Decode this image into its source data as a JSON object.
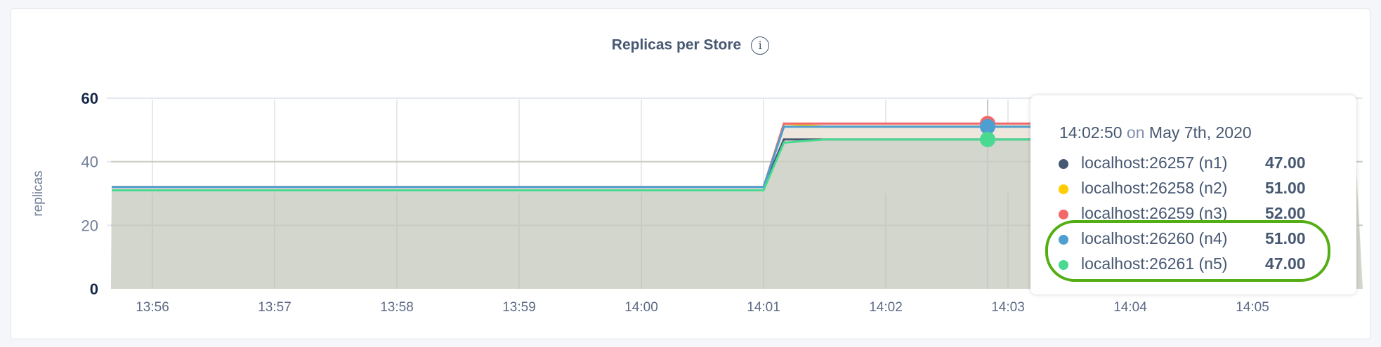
{
  "chart_data": {
    "type": "area",
    "title": "Replicas per Store",
    "ylabel": "replicas",
    "xlabel": "",
    "ylim": [
      0,
      60
    ],
    "yticks": [
      0,
      20,
      40,
      60
    ],
    "xticks": [
      "13:56",
      "13:57",
      "13:58",
      "13:59",
      "14:00",
      "14:01",
      "14:02",
      "14:03",
      "14:04",
      "14:05"
    ],
    "grid": true,
    "x": [
      "13:55:40",
      "14:01:00",
      "14:01:10",
      "14:01:30",
      "14:05:50"
    ],
    "series": [
      {
        "name": "localhost:26257 (n1)",
        "color": "#475872",
        "values": [
          32,
          32,
          47,
          47,
          47
        ]
      },
      {
        "name": "localhost:26258 (n2)",
        "color": "#ffcd02",
        "values": [
          32,
          32,
          52,
          51,
          51
        ]
      },
      {
        "name": "localhost:26259 (n3)",
        "color": "#f16969",
        "values": [
          32,
          32,
          52,
          52,
          52
        ]
      },
      {
        "name": "localhost:26260 (n4)",
        "color": "#4e9fd1",
        "values": [
          32,
          32,
          51,
          51,
          51
        ]
      },
      {
        "name": "localhost:26261 (n5)",
        "color": "#49d990",
        "values": [
          31,
          31,
          46,
          47,
          47
        ]
      }
    ],
    "hover": {
      "time": "14:02:50",
      "on": "on",
      "date": "May 7th, 2020",
      "values": [
        "47.00",
        "51.00",
        "52.00",
        "51.00",
        "47.00"
      ]
    },
    "highlighted_series": [
      "localhost:26260 (n4)",
      "localhost:26261 (n5)"
    ],
    "highlight_color": "#52ae12"
  },
  "info_icon": "info-icon"
}
